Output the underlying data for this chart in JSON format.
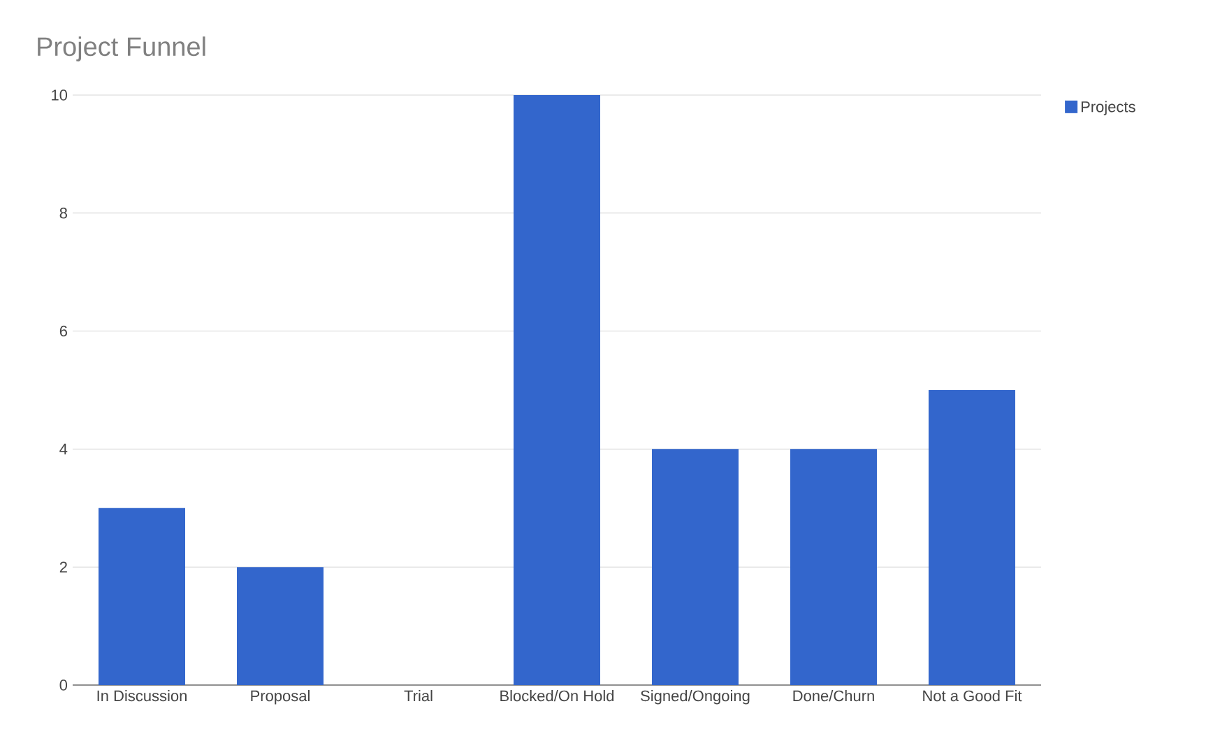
{
  "chart_data": {
    "type": "bar",
    "title": "Project Funnel",
    "categories": [
      "In Discussion",
      "Proposal",
      "Trial",
      "Blocked/On Hold",
      "Signed/Ongoing",
      "Done/Churn",
      "Not a Good Fit"
    ],
    "series": [
      {
        "name": "Projects",
        "color": "#3366cc",
        "values": [
          3,
          2,
          0,
          10,
          4,
          4,
          5
        ]
      }
    ],
    "ylim": [
      0,
      10
    ],
    "yticks": [
      0,
      2,
      4,
      6,
      8,
      10
    ],
    "grid": "y",
    "legend": "top right"
  }
}
